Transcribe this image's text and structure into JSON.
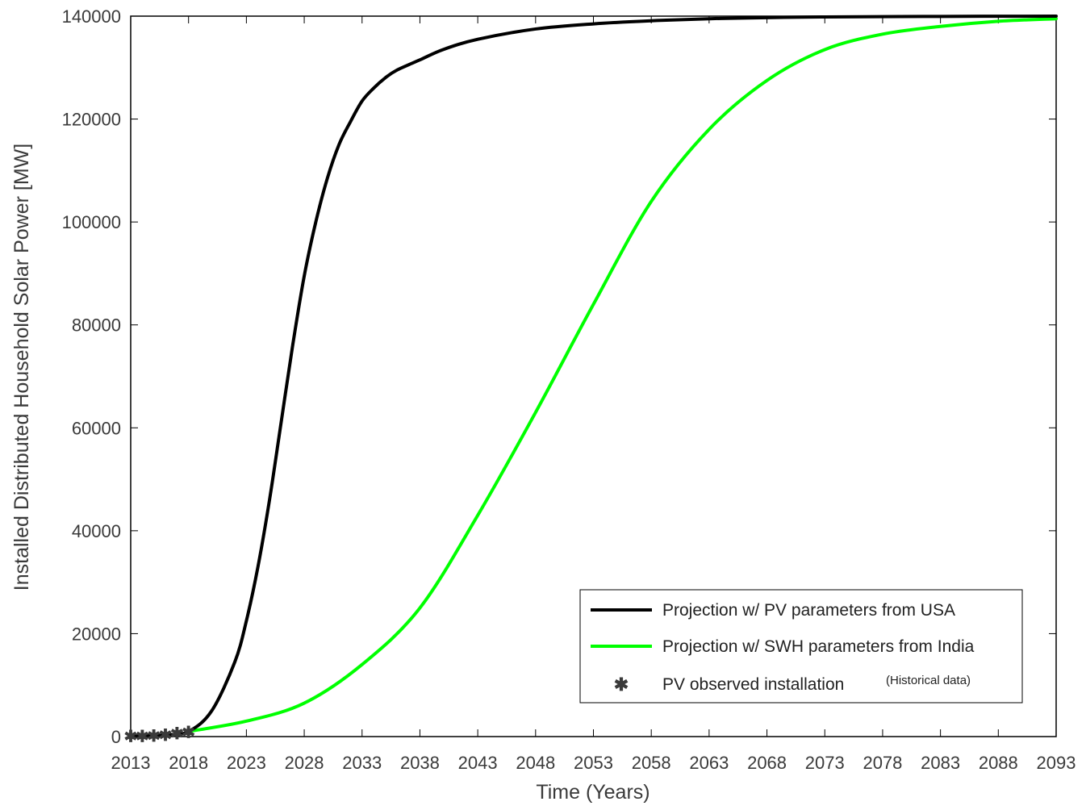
{
  "chart_data": {
    "type": "line",
    "title": "",
    "xlabel": "Time (Years)",
    "ylabel": "Installed Distributed Household Solar Power   [MW]",
    "xlim": [
      2013,
      2093
    ],
    "ylim": [
      0,
      140000
    ],
    "x_ticks": [
      2013,
      2018,
      2023,
      2028,
      2033,
      2038,
      2043,
      2048,
      2053,
      2058,
      2063,
      2068,
      2073,
      2078,
      2083,
      2088,
      2093
    ],
    "y_ticks": [
      0,
      20000,
      40000,
      60000,
      80000,
      100000,
      120000,
      140000
    ],
    "grid": false,
    "legend_position": "bottom-right",
    "series": [
      {
        "name": "Projection w/ PV parameters from USA",
        "color": "#000000",
        "style": "line",
        "x": [
          2013,
          2016,
          2018,
          2020,
          2022,
          2023,
          2024,
          2025,
          2026,
          2027,
          2028,
          2029,
          2030,
          2031,
          2032,
          2033,
          2034,
          2035,
          2036,
          2038,
          2040,
          2043,
          2048,
          2053,
          2058,
          2063,
          2068,
          2073,
          2083,
          2093
        ],
        "y": [
          50,
          300,
          1000,
          5000,
          14500,
          22500,
          33000,
          46000,
          61000,
          76000,
          89500,
          100000,
          108500,
          115000,
          119500,
          123500,
          126000,
          128000,
          129500,
          131500,
          133500,
          135500,
          137500,
          138500,
          139100,
          139500,
          139700,
          139850,
          139950,
          140000
        ]
      },
      {
        "name": "Projection w/ SWH parameters from India",
        "color": "#00ff00",
        "style": "line",
        "x": [
          2018,
          2023,
          2028,
          2033,
          2038,
          2043,
          2048,
          2053,
          2058,
          2063,
          2068,
          2073,
          2078,
          2083,
          2088,
          2093
        ],
        "y": [
          1000,
          3000,
          6500,
          14000,
          25000,
          43000,
          63000,
          84000,
          104000,
          118000,
          127500,
          133500,
          136500,
          138000,
          139000,
          139500
        ]
      },
      {
        "name": "PV observed installation",
        "color": "#ff2020",
        "style": "markers",
        "x": [
          2013,
          2014,
          2015,
          2016,
          2017,
          2018
        ],
        "y": [
          50,
          80,
          150,
          300,
          600,
          900
        ]
      }
    ],
    "legend_note": "(Historical data)"
  }
}
